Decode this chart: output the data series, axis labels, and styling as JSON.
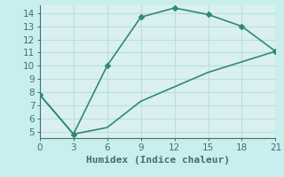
{
  "xlabel": "Humidex (Indice chaleur)",
  "line1_x": [
    0,
    3,
    6,
    9,
    12,
    15,
    18,
    21
  ],
  "line1_y": [
    7.8,
    4.8,
    10.0,
    13.7,
    14.4,
    13.9,
    13.0,
    11.1
  ],
  "line2_x": [
    0,
    3,
    6,
    9,
    12,
    15,
    18,
    21
  ],
  "line2_y": [
    7.8,
    4.8,
    5.3,
    7.3,
    8.4,
    9.5,
    10.3,
    11.1
  ],
  "line_color": "#2e8b72",
  "fig_bg_color": "#c8eeee",
  "plot_bg": "#daf0f0",
  "grid_color": "#b8dede",
  "spine_color": "#3e7070",
  "xlim": [
    0,
    21
  ],
  "ylim": [
    4.5,
    14.6
  ],
  "xticks": [
    0,
    3,
    6,
    9,
    12,
    15,
    18,
    21
  ],
  "yticks": [
    5,
    6,
    7,
    8,
    9,
    10,
    11,
    12,
    13,
    14
  ],
  "xlabel_fontsize": 8,
  "tick_fontsize": 7.5,
  "marker": "D",
  "markersize": 3,
  "linewidth": 1.2
}
